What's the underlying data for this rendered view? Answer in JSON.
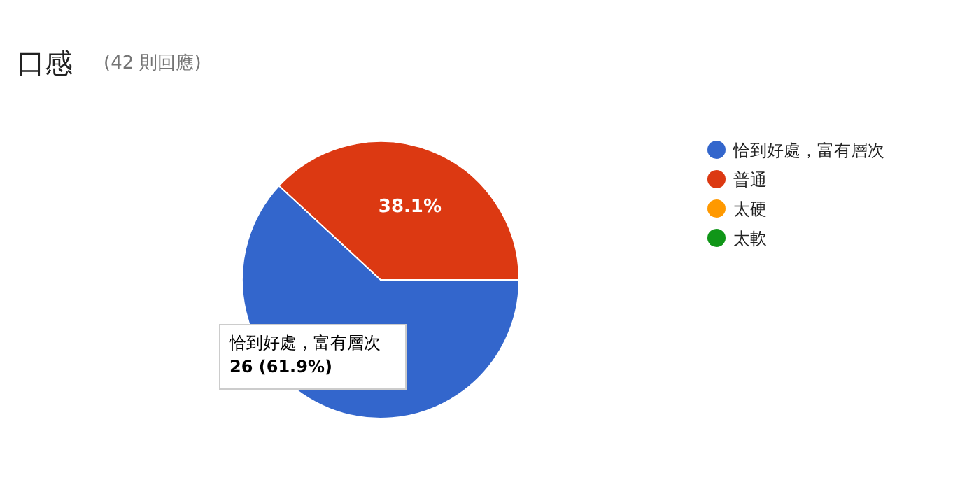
{
  "chart_data": {
    "type": "pie",
    "title": "口感",
    "subtitle": "(42 則回應)",
    "categories": [
      "恰到好處，富有層次",
      "普通",
      "太硬",
      "太軟"
    ],
    "values": [
      61.9,
      38.1,
      0,
      0
    ],
    "colors": [
      "#3366cc",
      "#dc3912",
      "#ff9900",
      "#109618"
    ],
    "value_labels": [
      null,
      "38.1%",
      null,
      null
    ],
    "legend": "right",
    "annotations": [
      "恰到好處，富有層次",
      "26 (61.9%)"
    ]
  }
}
